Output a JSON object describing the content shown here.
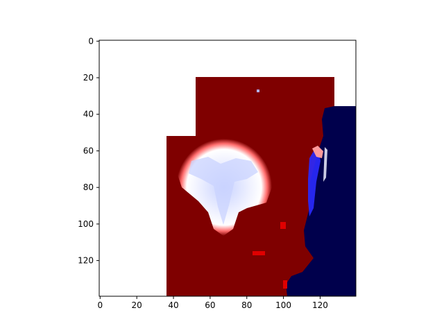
{
  "chart_data": {
    "type": "heatmap",
    "title": "",
    "xlabel": "",
    "ylabel": "",
    "xlim": [
      -0.5,
      139.5
    ],
    "ylim": [
      139.5,
      -0.5
    ],
    "x_ticks": [
      0,
      20,
      40,
      60,
      80,
      100,
      120
    ],
    "y_ticks": [
      0,
      20,
      40,
      60,
      80,
      100,
      120
    ],
    "x_tick_labels": [
      "0",
      "20",
      "40",
      "60",
      "80",
      "100",
      "120"
    ],
    "y_tick_labels": [
      "0",
      "20",
      "40",
      "60",
      "80",
      "100",
      "120"
    ],
    "colormap": "seismic",
    "colors": {
      "high": "#7f0000",
      "mid": "#ffffff",
      "low": "#00004c",
      "masked": "#ffffff"
    },
    "grid": false,
    "regions": [
      {
        "name": "masked-top",
        "value": null,
        "x": [
          0,
          140
        ],
        "y": [
          0,
          20
        ]
      },
      {
        "name": "masked-left-upper",
        "value": null,
        "x": [
          0,
          52
        ],
        "y": [
          20,
          52
        ]
      },
      {
        "name": "masked-right-upper",
        "value": null,
        "x": [
          128,
          140
        ],
        "y": [
          20,
          36
        ]
      },
      {
        "name": "masked-left-lower",
        "value": null,
        "x": [
          0,
          36
        ],
        "y": [
          52,
          140
        ]
      },
      {
        "name": "main-field",
        "value": 1.0,
        "x": [
          36,
          128
        ],
        "y": [
          20,
          140
        ]
      },
      {
        "name": "central-blob",
        "value": 0.05,
        "center": [
          66,
          80
        ],
        "extent": [
          54,
          108
        ]
      },
      {
        "name": "right-low-region",
        "value": -1.0,
        "x": [
          112,
          140
        ],
        "y": [
          36,
          140
        ]
      }
    ]
  }
}
